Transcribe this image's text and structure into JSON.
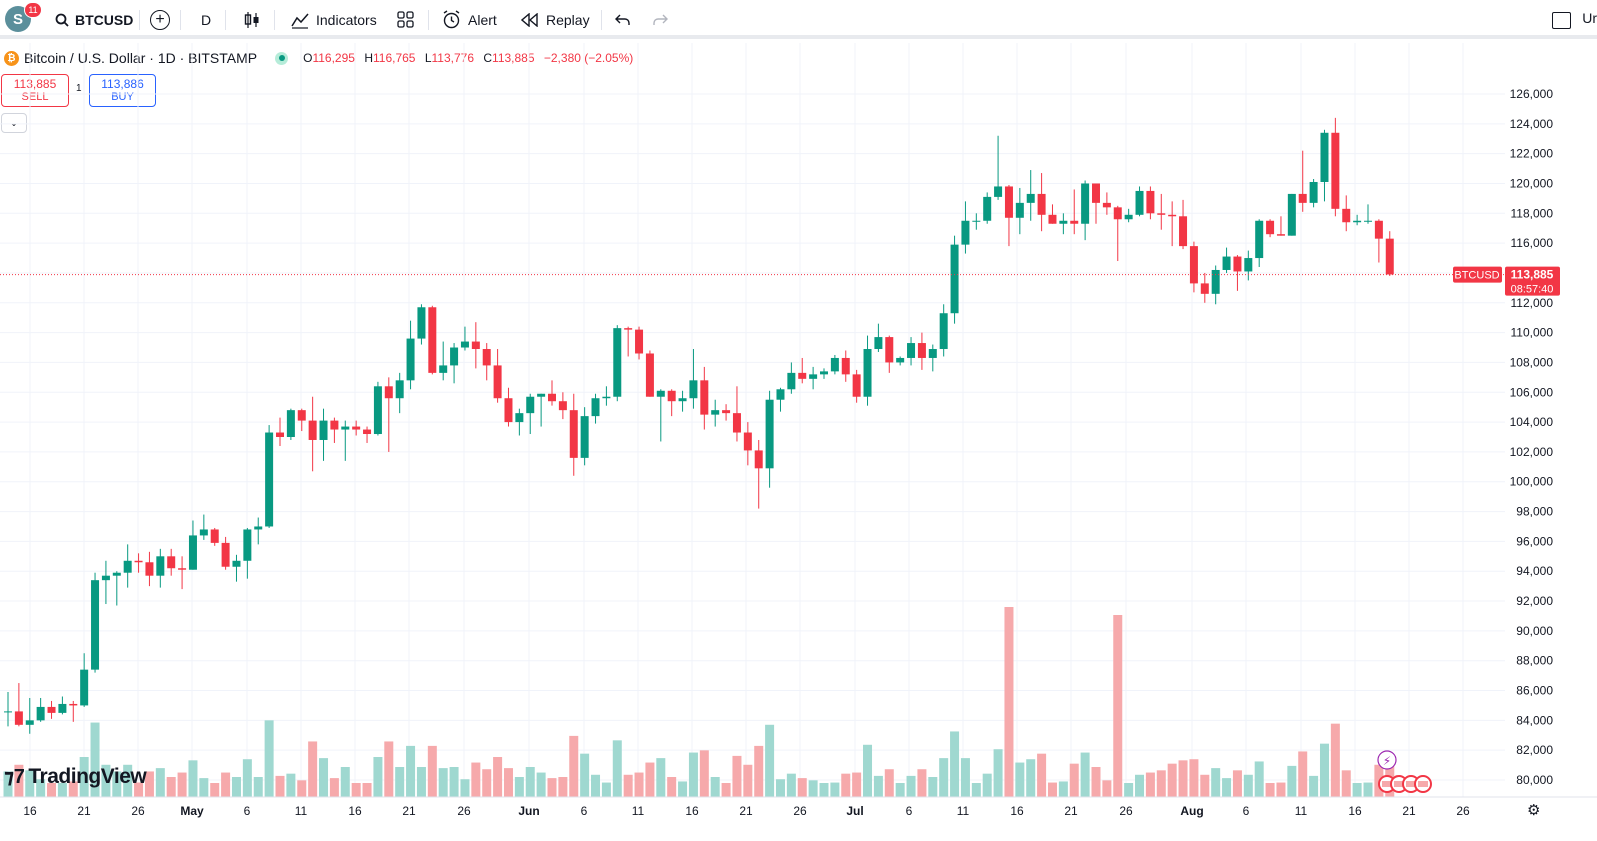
{
  "toolbar": {
    "avatar_letter": "S",
    "notification_count": "11",
    "symbol": "BTCUSD",
    "interval": "D",
    "indicators_label": "Indicators",
    "alert_label": "Alert",
    "replay_label": "Replay",
    "cut_label": "Ur"
  },
  "legend": {
    "title": "Bitcoin / U.S. Dollar · 1D · BITSTAMP",
    "open_key": "O",
    "open": "116,295",
    "high_key": "H",
    "high": "116,765",
    "low_key": "L",
    "low": "113,776",
    "close_key": "C",
    "close": "113,885",
    "change": "−2,380 (−2.05%)"
  },
  "trade": {
    "sell_price": "113,885",
    "sell_label": "SELL",
    "buy_price": "113,886",
    "buy_label": "BUY",
    "quantity": "1"
  },
  "currency": "USD",
  "brand": "TradingView",
  "price_tag": {
    "symbol": "BTCUSD",
    "price": "113,885",
    "countdown": "08:57:40"
  },
  "colors": {
    "up": "#089981",
    "down": "#f23645",
    "up_volume": "#9fd8d0",
    "down_volume": "#f6a9ab"
  },
  "chart_data": {
    "type": "candlestick",
    "y_axis_ticks": [
      "126,000",
      "124,000",
      "122,000",
      "120,000",
      "118,000",
      "116,000",
      "114,000",
      "112,000",
      "110,000",
      "108,000",
      "106,000",
      "104,000",
      "102,000",
      "100,000",
      "98,000",
      "96,000",
      "94,000",
      "92,000",
      "90,000",
      "88,000",
      "86,000",
      "84,000",
      "82,000",
      "80,000"
    ],
    "x_axis_labels": [
      "16",
      "21",
      "26",
      "May",
      "6",
      "11",
      "16",
      "21",
      "26",
      "Jun",
      "6",
      "11",
      "16",
      "21",
      "26",
      "Jul",
      "6",
      "11",
      "16",
      "21",
      "26",
      "Aug",
      "6",
      "11",
      "16",
      "21",
      "26"
    ],
    "ylim": [
      79000,
      127500
    ],
    "current_price": 113885,
    "series": [
      {
        "date": "2025-04-14",
        "o": 84550,
        "h": 85900,
        "l": 83600,
        "c": 84600
      },
      {
        "date": "2025-04-15",
        "o": 84600,
        "h": 86500,
        "l": 83600,
        "c": 83700
      },
      {
        "date": "2025-04-16",
        "o": 83700,
        "h": 85500,
        "l": 83100,
        "c": 84000
      },
      {
        "date": "2025-04-17",
        "o": 84000,
        "h": 85500,
        "l": 83900,
        "c": 84900
      },
      {
        "date": "2025-04-18",
        "o": 84900,
        "h": 85300,
        "l": 84100,
        "c": 84500
      },
      {
        "date": "2025-04-19",
        "o": 84500,
        "h": 85600,
        "l": 84400,
        "c": 85100
      },
      {
        "date": "2025-04-20",
        "o": 85100,
        "h": 85300,
        "l": 83900,
        "c": 85000
      },
      {
        "date": "2025-04-21",
        "o": 85000,
        "h": 88500,
        "l": 84900,
        "c": 87400
      },
      {
        "date": "2025-04-22",
        "o": 87400,
        "h": 93900,
        "l": 87200,
        "c": 93400
      },
      {
        "date": "2025-04-23",
        "o": 93400,
        "h": 94700,
        "l": 91800,
        "c": 93700
      },
      {
        "date": "2025-04-24",
        "o": 93700,
        "h": 94000,
        "l": 91700,
        "c": 93900
      },
      {
        "date": "2025-04-25",
        "o": 93900,
        "h": 95800,
        "l": 92900,
        "c": 94700
      },
      {
        "date": "2025-04-26",
        "o": 94700,
        "h": 95200,
        "l": 93900,
        "c": 94600
      },
      {
        "date": "2025-04-27",
        "o": 94600,
        "h": 95300,
        "l": 93000,
        "c": 93700
      },
      {
        "date": "2025-04-28",
        "o": 93700,
        "h": 95500,
        "l": 92900,
        "c": 95000
      },
      {
        "date": "2025-04-29",
        "o": 95000,
        "h": 95500,
        "l": 93700,
        "c": 94200
      },
      {
        "date": "2025-04-30",
        "o": 94200,
        "h": 95000,
        "l": 92800,
        "c": 94100
      },
      {
        "date": "2025-05-01",
        "o": 94100,
        "h": 97400,
        "l": 94100,
        "c": 96400
      },
      {
        "date": "2025-05-02",
        "o": 96400,
        "h": 97800,
        "l": 96100,
        "c": 96800
      },
      {
        "date": "2025-05-03",
        "o": 96800,
        "h": 96900,
        "l": 95700,
        "c": 95900
      },
      {
        "date": "2025-05-04",
        "o": 95900,
        "h": 96300,
        "l": 94100,
        "c": 94300
      },
      {
        "date": "2025-05-05",
        "o": 94300,
        "h": 95100,
        "l": 93300,
        "c": 94700
      },
      {
        "date": "2025-05-06",
        "o": 94700,
        "h": 96900,
        "l": 93500,
        "c": 96800
      },
      {
        "date": "2025-05-07",
        "o": 96800,
        "h": 97600,
        "l": 95800,
        "c": 97000
      },
      {
        "date": "2025-05-08",
        "o": 97000,
        "h": 103800,
        "l": 96900,
        "c": 103300
      },
      {
        "date": "2025-05-09",
        "o": 103300,
        "h": 104300,
        "l": 102400,
        "c": 103000
      },
      {
        "date": "2025-05-10",
        "o": 103000,
        "h": 104900,
        "l": 102800,
        "c": 104800
      },
      {
        "date": "2025-05-11",
        "o": 104800,
        "h": 104900,
        "l": 103400,
        "c": 104100
      },
      {
        "date": "2025-05-12",
        "o": 104100,
        "h": 105700,
        "l": 100700,
        "c": 102800
      },
      {
        "date": "2025-05-13",
        "o": 102800,
        "h": 104900,
        "l": 101400,
        "c": 104100
      },
      {
        "date": "2025-05-14",
        "o": 104100,
        "h": 104300,
        "l": 102600,
        "c": 103500
      },
      {
        "date": "2025-05-15",
        "o": 103500,
        "h": 104100,
        "l": 101400,
        "c": 103700
      },
      {
        "date": "2025-05-16",
        "o": 103700,
        "h": 104100,
        "l": 103100,
        "c": 103500
      },
      {
        "date": "2025-05-17",
        "o": 103500,
        "h": 103700,
        "l": 102600,
        "c": 103200
      },
      {
        "date": "2025-05-18",
        "o": 103200,
        "h": 106700,
        "l": 103100,
        "c": 106400
      },
      {
        "date": "2025-05-19",
        "o": 106400,
        "h": 107000,
        "l": 102000,
        "c": 105600
      },
      {
        "date": "2025-05-20",
        "o": 105600,
        "h": 107300,
        "l": 104600,
        "c": 106800
      },
      {
        "date": "2025-05-21",
        "o": 106800,
        "h": 110800,
        "l": 106200,
        "c": 109600
      },
      {
        "date": "2025-05-22",
        "o": 109600,
        "h": 111900,
        "l": 109200,
        "c": 111700
      },
      {
        "date": "2025-05-23",
        "o": 111700,
        "h": 111800,
        "l": 107200,
        "c": 107300
      },
      {
        "date": "2025-05-24",
        "o": 107300,
        "h": 109400,
        "l": 106800,
        "c": 107800
      },
      {
        "date": "2025-05-25",
        "o": 107800,
        "h": 109300,
        "l": 106600,
        "c": 109000
      },
      {
        "date": "2025-05-26",
        "o": 109000,
        "h": 110400,
        "l": 108800,
        "c": 109400
      },
      {
        "date": "2025-05-27",
        "o": 109400,
        "h": 110700,
        "l": 107600,
        "c": 108900
      },
      {
        "date": "2025-05-28",
        "o": 108900,
        "h": 109300,
        "l": 106800,
        "c": 107800
      },
      {
        "date": "2025-05-29",
        "o": 107800,
        "h": 108900,
        "l": 105300,
        "c": 105600
      },
      {
        "date": "2025-05-30",
        "o": 105600,
        "h": 106300,
        "l": 103700,
        "c": 104000
      },
      {
        "date": "2025-05-31",
        "o": 104000,
        "h": 104900,
        "l": 103100,
        "c": 104600
      },
      {
        "date": "2025-06-01",
        "o": 104600,
        "h": 105900,
        "l": 103200,
        "c": 105700
      },
      {
        "date": "2025-06-02",
        "o": 105700,
        "h": 105900,
        "l": 103700,
        "c": 105900
      },
      {
        "date": "2025-06-03",
        "o": 105900,
        "h": 106800,
        "l": 105100,
        "c": 105400
      },
      {
        "date": "2025-06-04",
        "o": 105400,
        "h": 106000,
        "l": 104200,
        "c": 104800
      },
      {
        "date": "2025-06-05",
        "o": 104800,
        "h": 105900,
        "l": 100400,
        "c": 101600
      },
      {
        "date": "2025-06-06",
        "o": 101600,
        "h": 105000,
        "l": 101100,
        "c": 104400
      },
      {
        "date": "2025-06-07",
        "o": 104400,
        "h": 105900,
        "l": 103900,
        "c": 105600
      },
      {
        "date": "2025-06-08",
        "o": 105600,
        "h": 106400,
        "l": 105100,
        "c": 105700
      },
      {
        "date": "2025-06-09",
        "o": 105700,
        "h": 110500,
        "l": 105400,
        "c": 110300
      },
      {
        "date": "2025-06-10",
        "o": 110300,
        "h": 110400,
        "l": 108400,
        "c": 110200
      },
      {
        "date": "2025-06-11",
        "o": 110200,
        "h": 110400,
        "l": 108200,
        "c": 108600
      },
      {
        "date": "2025-06-12",
        "o": 108600,
        "h": 108800,
        "l": 105700,
        "c": 105700
      },
      {
        "date": "2025-06-13",
        "o": 105700,
        "h": 106200,
        "l": 102700,
        "c": 106100
      },
      {
        "date": "2025-06-14",
        "o": 106100,
        "h": 106200,
        "l": 104400,
        "c": 105400
      },
      {
        "date": "2025-06-15",
        "o": 105400,
        "h": 106100,
        "l": 104700,
        "c": 105600
      },
      {
        "date": "2025-06-16",
        "o": 105600,
        "h": 108900,
        "l": 104900,
        "c": 106800
      },
      {
        "date": "2025-06-17",
        "o": 106800,
        "h": 107700,
        "l": 103500,
        "c": 104500
      },
      {
        "date": "2025-06-18",
        "o": 104500,
        "h": 105500,
        "l": 103700,
        "c": 104800
      },
      {
        "date": "2025-06-19",
        "o": 104800,
        "h": 105200,
        "l": 104100,
        "c": 104600
      },
      {
        "date": "2025-06-20",
        "o": 104600,
        "h": 106400,
        "l": 102700,
        "c": 103300
      },
      {
        "date": "2025-06-21",
        "o": 103300,
        "h": 104000,
        "l": 101100,
        "c": 102100
      },
      {
        "date": "2025-06-22",
        "o": 102100,
        "h": 102800,
        "l": 98200,
        "c": 100900
      },
      {
        "date": "2025-06-23",
        "o": 100900,
        "h": 106100,
        "l": 99600,
        "c": 105500
      },
      {
        "date": "2025-06-24",
        "o": 105500,
        "h": 106300,
        "l": 104700,
        "c": 106200
      },
      {
        "date": "2025-06-25",
        "o": 106200,
        "h": 108000,
        "l": 105900,
        "c": 107300
      },
      {
        "date": "2025-06-26",
        "o": 107300,
        "h": 108300,
        "l": 106600,
        "c": 106900
      },
      {
        "date": "2025-06-27",
        "o": 106900,
        "h": 107700,
        "l": 106200,
        "c": 107200
      },
      {
        "date": "2025-06-28",
        "o": 107200,
        "h": 107600,
        "l": 106900,
        "c": 107400
      },
      {
        "date": "2025-06-29",
        "o": 107400,
        "h": 108500,
        "l": 107200,
        "c": 108300
      },
      {
        "date": "2025-06-30",
        "o": 108300,
        "h": 108800,
        "l": 106700,
        "c": 107200
      },
      {
        "date": "2025-07-01",
        "o": 107200,
        "h": 107500,
        "l": 105300,
        "c": 105700
      },
      {
        "date": "2025-07-02",
        "o": 105700,
        "h": 109800,
        "l": 105100,
        "c": 108900
      },
      {
        "date": "2025-07-03",
        "o": 108900,
        "h": 110600,
        "l": 108700,
        "c": 109700
      },
      {
        "date": "2025-07-04",
        "o": 109700,
        "h": 109800,
        "l": 107300,
        "c": 108000
      },
      {
        "date": "2025-07-05",
        "o": 108000,
        "h": 108400,
        "l": 107800,
        "c": 108300
      },
      {
        "date": "2025-07-06",
        "o": 108300,
        "h": 109700,
        "l": 107800,
        "c": 109300
      },
      {
        "date": "2025-07-07",
        "o": 109300,
        "h": 110000,
        "l": 107500,
        "c": 108300
      },
      {
        "date": "2025-07-08",
        "o": 108300,
        "h": 109200,
        "l": 107400,
        "c": 108900
      },
      {
        "date": "2025-07-09",
        "o": 108900,
        "h": 111900,
        "l": 108400,
        "c": 111300
      },
      {
        "date": "2025-07-10",
        "o": 111300,
        "h": 116500,
        "l": 110600,
        "c": 115900
      },
      {
        "date": "2025-07-11",
        "o": 115900,
        "h": 118800,
        "l": 115300,
        "c": 117500
      },
      {
        "date": "2025-07-12",
        "o": 117500,
        "h": 118000,
        "l": 116900,
        "c": 117500
      },
      {
        "date": "2025-07-13",
        "o": 117500,
        "h": 119400,
        "l": 117300,
        "c": 119100
      },
      {
        "date": "2025-07-14",
        "o": 119100,
        "h": 123200,
        "l": 118900,
        "c": 119800
      },
      {
        "date": "2025-07-15",
        "o": 119800,
        "h": 119900,
        "l": 115800,
        "c": 117700
      },
      {
        "date": "2025-07-16",
        "o": 117700,
        "h": 119700,
        "l": 116600,
        "c": 118700
      },
      {
        "date": "2025-07-17",
        "o": 118700,
        "h": 120900,
        "l": 117500,
        "c": 119300
      },
      {
        "date": "2025-07-18",
        "o": 119300,
        "h": 120700,
        "l": 116800,
        "c": 117900
      },
      {
        "date": "2025-07-19",
        "o": 117900,
        "h": 118600,
        "l": 117300,
        "c": 117300
      },
      {
        "date": "2025-07-20",
        "o": 117300,
        "h": 118000,
        "l": 116600,
        "c": 117500
      },
      {
        "date": "2025-07-21",
        "o": 117500,
        "h": 119600,
        "l": 116600,
        "c": 117300
      },
      {
        "date": "2025-07-22",
        "o": 117300,
        "h": 120200,
        "l": 116200,
        "c": 120000
      },
      {
        "date": "2025-07-23",
        "o": 120000,
        "h": 120000,
        "l": 117300,
        "c": 118700
      },
      {
        "date": "2025-07-24",
        "o": 118700,
        "h": 119400,
        "l": 117900,
        "c": 118400
      },
      {
        "date": "2025-07-25",
        "o": 118400,
        "h": 118500,
        "l": 114800,
        "c": 117600
      },
      {
        "date": "2025-07-26",
        "o": 117600,
        "h": 118300,
        "l": 117400,
        "c": 117900
      },
      {
        "date": "2025-07-27",
        "o": 117900,
        "h": 119800,
        "l": 117800,
        "c": 119500
      },
      {
        "date": "2025-07-28",
        "o": 119500,
        "h": 119800,
        "l": 117600,
        "c": 118000
      },
      {
        "date": "2025-07-29",
        "o": 118000,
        "h": 119300,
        "l": 116900,
        "c": 117900
      },
      {
        "date": "2025-07-30",
        "o": 117900,
        "h": 118800,
        "l": 115800,
        "c": 117800
      },
      {
        "date": "2025-07-31",
        "o": 117800,
        "h": 118900,
        "l": 115600,
        "c": 115800
      },
      {
        "date": "2025-08-01",
        "o": 115800,
        "h": 116100,
        "l": 112700,
        "c": 113300
      },
      {
        "date": "2025-08-02",
        "o": 113300,
        "h": 114000,
        "l": 112000,
        "c": 112600
      },
      {
        "date": "2025-08-03",
        "o": 112600,
        "h": 114500,
        "l": 111900,
        "c": 114200
      },
      {
        "date": "2025-08-04",
        "o": 114200,
        "h": 115700,
        "l": 114000,
        "c": 115100
      },
      {
        "date": "2025-08-05",
        "o": 115100,
        "h": 115200,
        "l": 112800,
        "c": 114100
      },
      {
        "date": "2025-08-06",
        "o": 114100,
        "h": 115500,
        "l": 113500,
        "c": 115000
      },
      {
        "date": "2025-08-07",
        "o": 115000,
        "h": 117600,
        "l": 114400,
        "c": 117500
      },
      {
        "date": "2025-08-08",
        "o": 117500,
        "h": 117600,
        "l": 116400,
        "c": 116600
      },
      {
        "date": "2025-08-09",
        "o": 116600,
        "h": 117800,
        "l": 116500,
        "c": 116500
      },
      {
        "date": "2025-08-10",
        "o": 116500,
        "h": 119300,
        "l": 116500,
        "c": 119300
      },
      {
        "date": "2025-08-11",
        "o": 119300,
        "h": 122200,
        "l": 118100,
        "c": 118700
      },
      {
        "date": "2025-08-12",
        "o": 118700,
        "h": 120300,
        "l": 118400,
        "c": 120100
      },
      {
        "date": "2025-08-13",
        "o": 120100,
        "h": 123600,
        "l": 118800,
        "c": 123400
      },
      {
        "date": "2025-08-14",
        "o": 123400,
        "h": 124400,
        "l": 117800,
        "c": 118300
      },
      {
        "date": "2025-08-15",
        "o": 118300,
        "h": 119200,
        "l": 116800,
        "c": 117400
      },
      {
        "date": "2025-08-16",
        "o": 117400,
        "h": 117900,
        "l": 117200,
        "c": 117500
      },
      {
        "date": "2025-08-17",
        "o": 117500,
        "h": 118600,
        "l": 117300,
        "c": 117500
      },
      {
        "date": "2025-08-18",
        "o": 117500,
        "h": 117600,
        "l": 114700,
        "c": 116300
      },
      {
        "date": "2025-08-19",
        "o": 116300,
        "h": 116800,
        "l": 113800,
        "c": 113900
      }
    ],
    "volume_note": "volume histogram shown as bars beneath candles, colored by candle direction"
  }
}
